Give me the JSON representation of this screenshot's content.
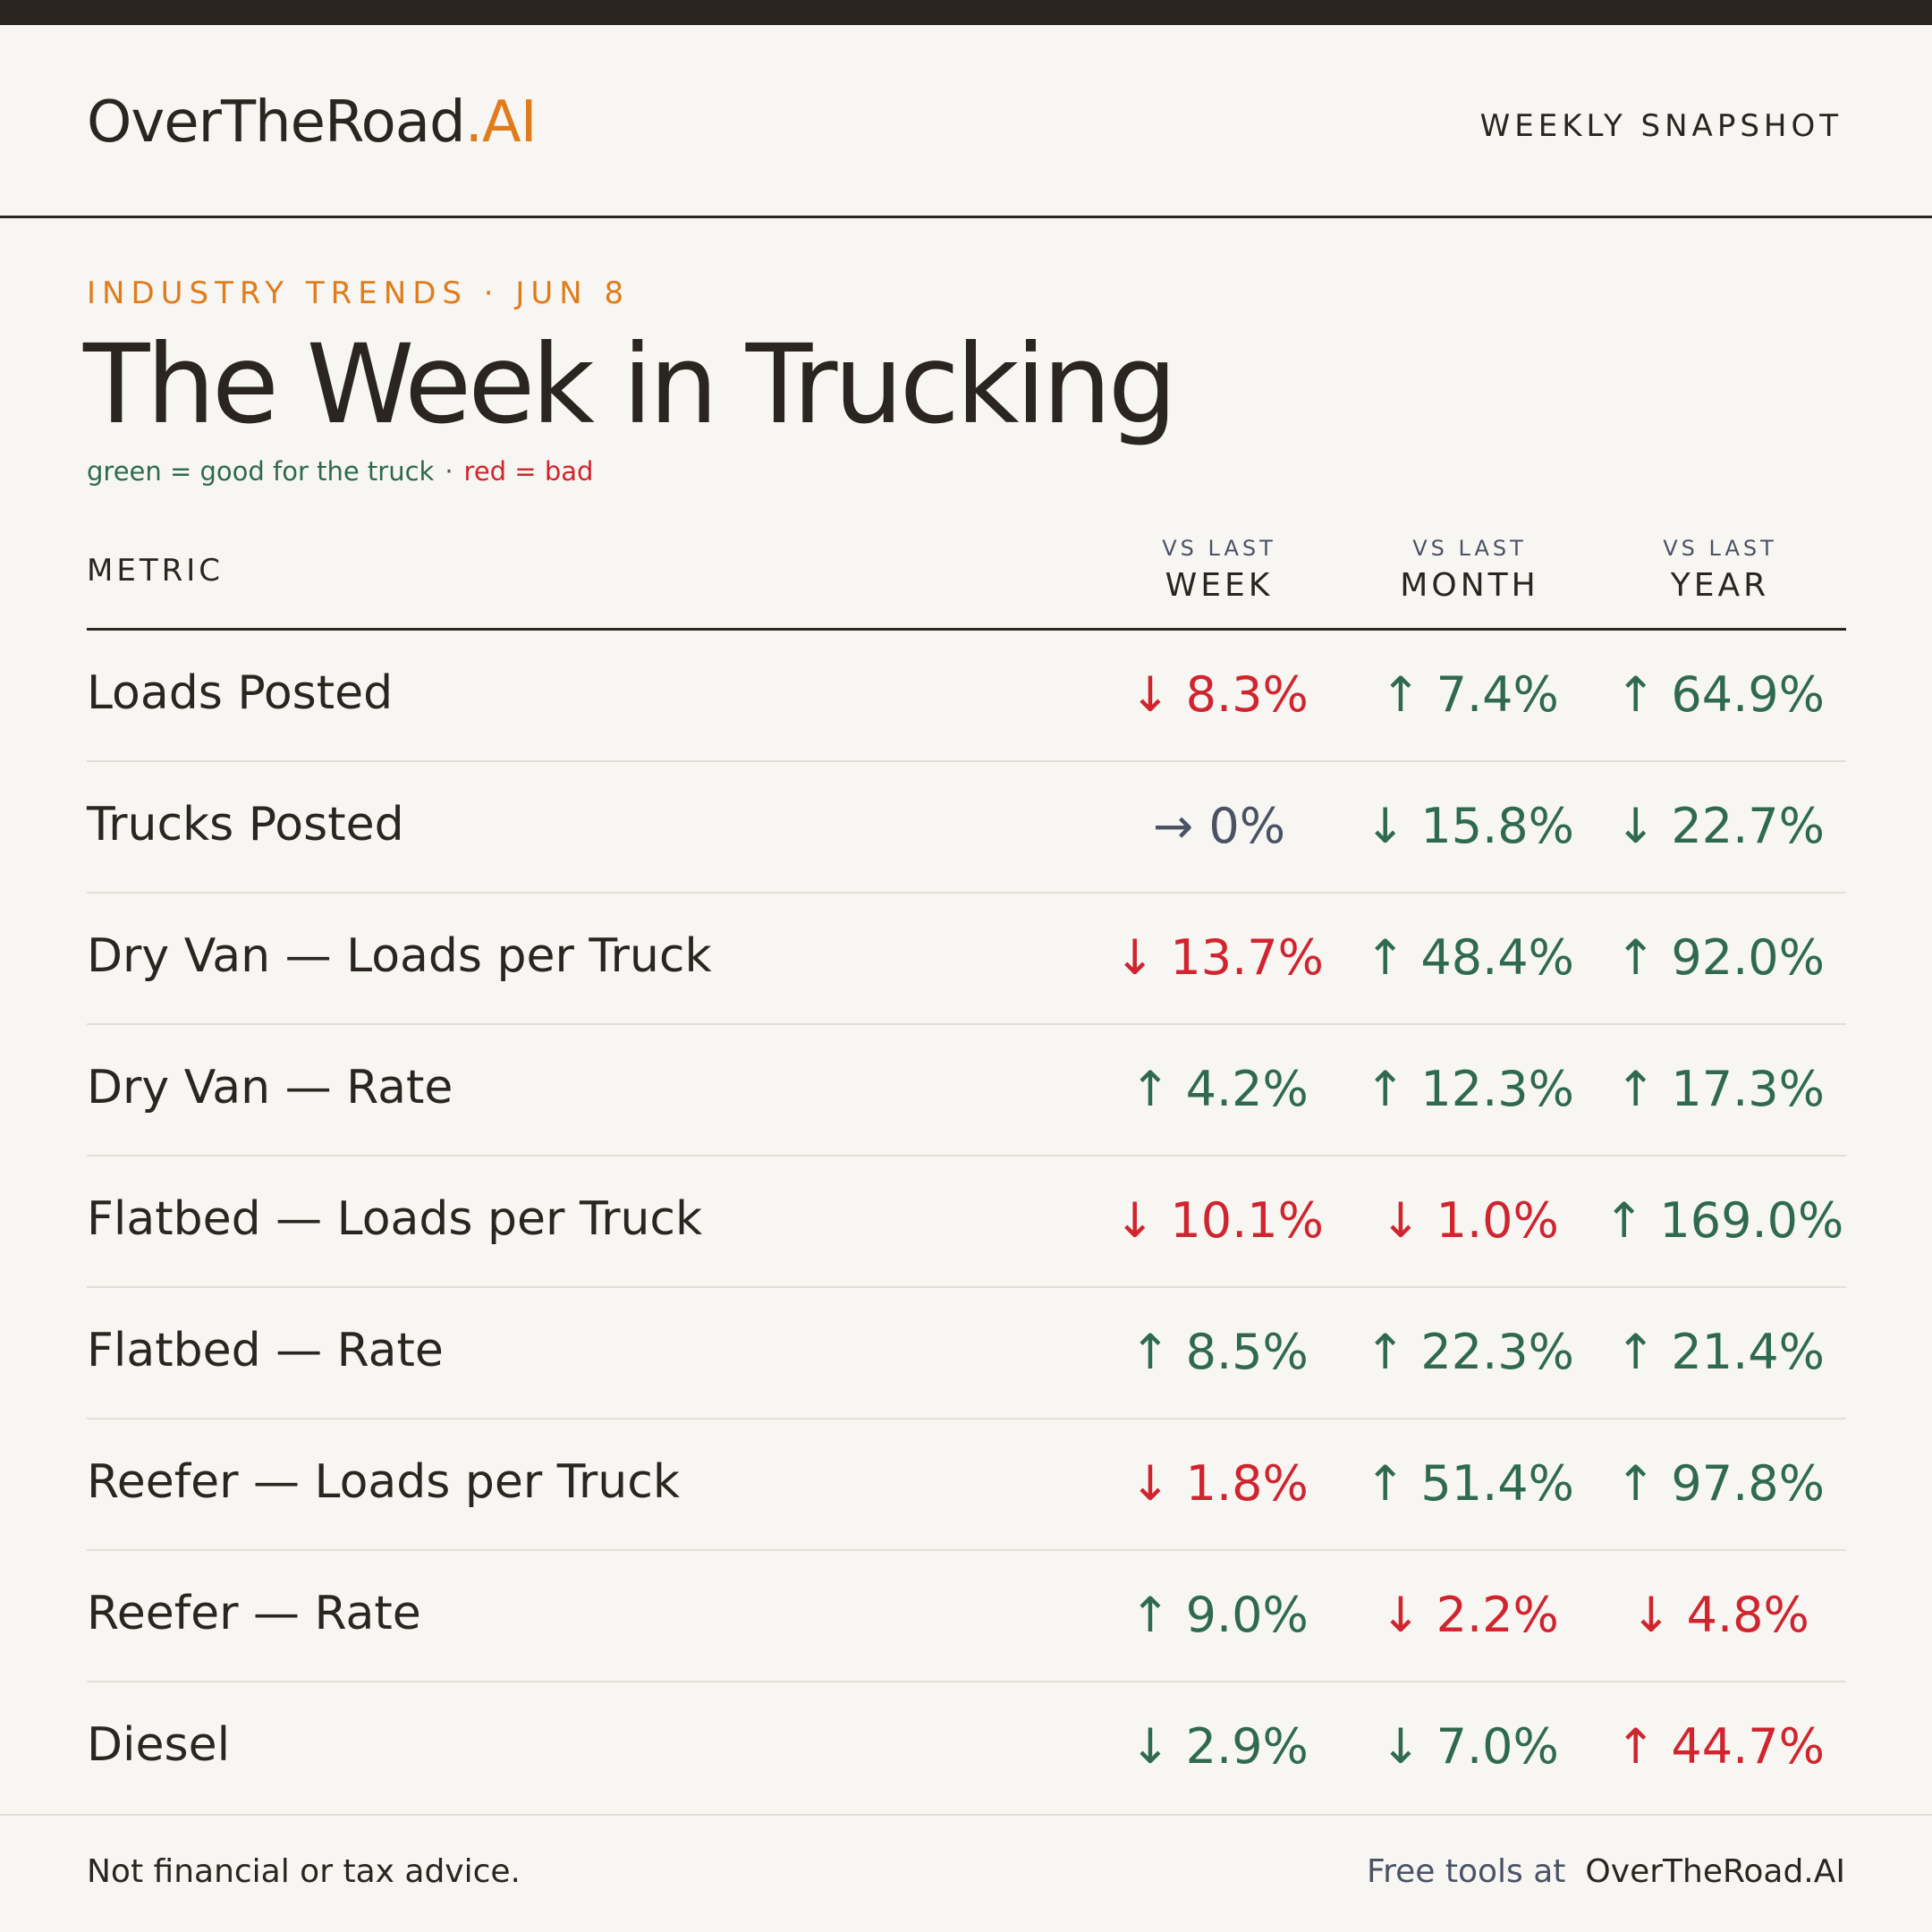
{
  "header": {
    "brand_main": "OverTheRoad",
    "brand_accent": ".AI",
    "snapshot_label": "WEEKLY SNAPSHOT"
  },
  "hero": {
    "kicker": "INDUSTRY TRENDS · JUN 8",
    "title": "The Week in Trucking",
    "legend_good": "green = good for the truck",
    "legend_sep": "·",
    "legend_bad": "red = bad"
  },
  "table": {
    "metric_header": "METRIC",
    "columns": [
      {
        "small": "VS LAST",
        "big": "WEEK"
      },
      {
        "small": "VS LAST",
        "big": "MONTH"
      },
      {
        "small": "VS LAST",
        "big": "YEAR"
      }
    ],
    "rows": [
      {
        "metric": "Loads Posted",
        "week": "↓ 8.3%",
        "month": "↑ 7.4%",
        "year": "↑ 64.9%",
        "week_tone": "bad",
        "month_tone": "good",
        "year_tone": "good"
      },
      {
        "metric": "Trucks Posted",
        "week": "→ 0%",
        "month": "↓ 15.8%",
        "year": "↓ 22.7%",
        "week_tone": "neutral",
        "month_tone": "good",
        "year_tone": "good"
      },
      {
        "metric": "Dry Van — Loads per Truck",
        "week": "↓ 13.7%",
        "month": "↑ 48.4%",
        "year": "↑ 92.0%",
        "week_tone": "bad",
        "month_tone": "good",
        "year_tone": "good"
      },
      {
        "metric": "Dry Van — Rate",
        "week": "↑ 4.2%",
        "month": "↑ 12.3%",
        "year": "↑ 17.3%",
        "week_tone": "good",
        "month_tone": "good",
        "year_tone": "good"
      },
      {
        "metric": "Flatbed — Loads per Truck",
        "week": "↓ 10.1%",
        "month": "↓ 1.0%",
        "year": "↑ 169.0%",
        "week_tone": "bad",
        "month_tone": "bad",
        "year_tone": "good"
      },
      {
        "metric": "Flatbed — Rate",
        "week": "↑ 8.5%",
        "month": "↑ 22.3%",
        "year": "↑ 21.4%",
        "week_tone": "good",
        "month_tone": "good",
        "year_tone": "good"
      },
      {
        "metric": "Reefer — Loads per Truck",
        "week": "↓ 1.8%",
        "month": "↑ 51.4%",
        "year": "↑ 97.8%",
        "week_tone": "bad",
        "month_tone": "good",
        "year_tone": "good"
      },
      {
        "metric": "Reefer — Rate",
        "week": "↑ 9.0%",
        "month": "↓ 2.2%",
        "year": "↓ 4.8%",
        "week_tone": "good",
        "month_tone": "bad",
        "year_tone": "bad"
      },
      {
        "metric": "Diesel",
        "week": "↓ 2.9%",
        "month": "↓ 7.0%",
        "year": "↑ 44.7%",
        "week_tone": "good",
        "month_tone": "good",
        "year_tone": "bad"
      }
    ]
  },
  "footer": {
    "disclaimer": "Not financial or tax advice.",
    "tools_lead": "Free tools at",
    "tools_site": "OverTheRoad.AI"
  },
  "colors": {
    "good": "#2f6a4e",
    "bad": "#d0242e",
    "neutral": "#4a5264",
    "accent": "#e07c1c",
    "ink": "#2a2520",
    "background": "#f7f6f2"
  }
}
